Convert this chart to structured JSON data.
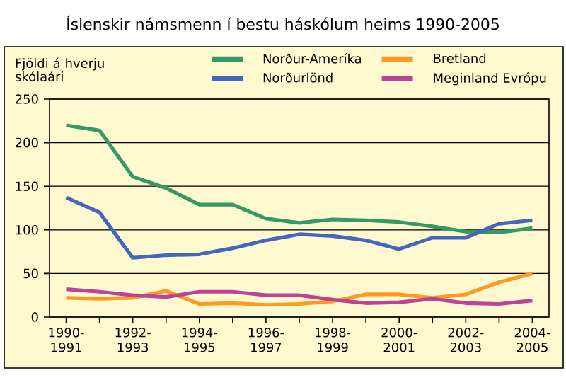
{
  "chart_data": {
    "type": "line",
    "title": "Íslenskir námsmenn í bestu háskólum heims 1990-2005",
    "ylabel": "Fjöldi á hverju skólaári",
    "categories": [
      "1990-1991",
      null,
      "1992-1993",
      null,
      "1994-1995",
      null,
      "1996-1997",
      null,
      "1998-1999",
      null,
      "2000-2001",
      null,
      "2002-2003",
      null,
      "2004-2005"
    ],
    "series": [
      {
        "name": "Norður-Ameríka",
        "color": "#339966",
        "values": [
          220,
          214,
          161,
          148,
          129,
          129,
          113,
          108,
          112,
          111,
          109,
          104,
          98,
          97,
          102
        ]
      },
      {
        "name": "Bretland",
        "color": "#ff9922",
        "values": [
          22,
          21,
          22,
          30,
          15,
          16,
          14,
          15,
          18,
          26,
          26,
          22,
          26,
          40,
          50
        ]
      },
      {
        "name": "Norðurlönd",
        "color": "#4466bb",
        "values": [
          137,
          120,
          68,
          71,
          72,
          79,
          88,
          95,
          93,
          88,
          78,
          91,
          91,
          107,
          111
        ]
      },
      {
        "name": "Meginland Evrópu",
        "color": "#bb4499",
        "values": [
          32,
          29,
          25,
          23,
          29,
          29,
          25,
          25,
          20,
          16,
          17,
          21,
          16,
          15,
          19
        ]
      }
    ],
    "ylim": [
      0,
      250
    ],
    "yticks": [
      0,
      50,
      100,
      150,
      200,
      250
    ],
    "grid": "y",
    "legend": "top",
    "marker": "none",
    "line_style": "solid"
  }
}
